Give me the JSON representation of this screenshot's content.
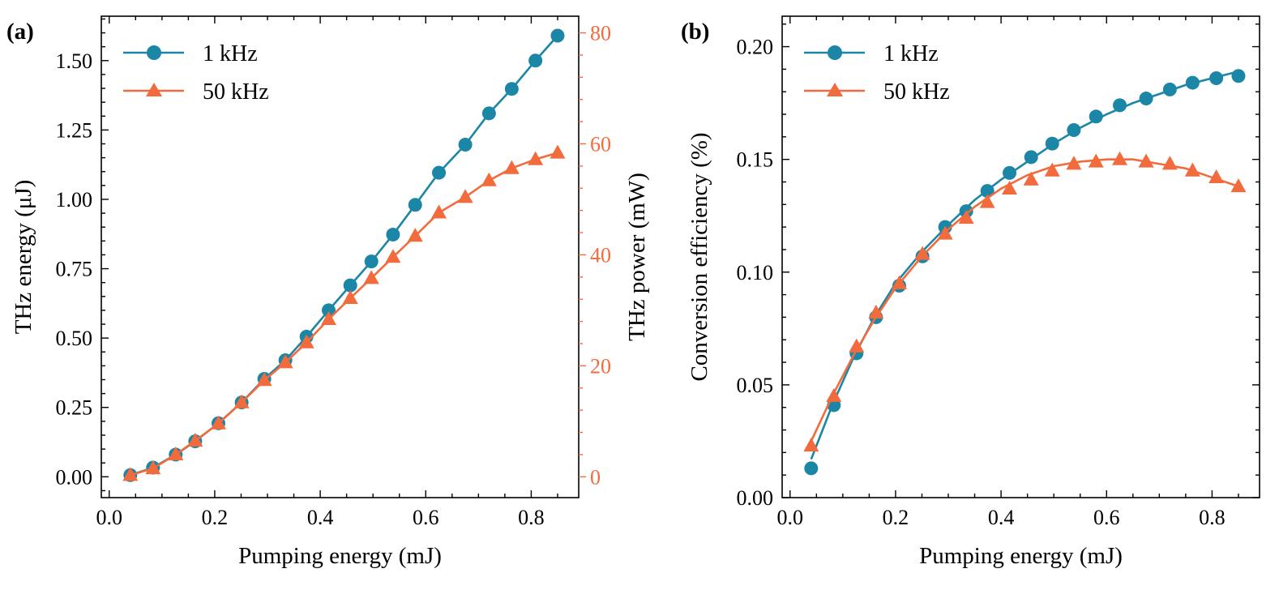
{
  "colors": {
    "series_1khz": "#1b86a6",
    "series_50khz": "#f26b3d",
    "axis": "#000000"
  },
  "chart_data": [
    {
      "type": "line",
      "panel_label": "(a)",
      "xlabel": "Pumping energy (mJ)",
      "ylabel": "THz energy (μJ)",
      "y2label": "THz power (mW)",
      "xlim": [
        -0.015,
        0.89
      ],
      "ylim": [
        -0.075,
        1.66
      ],
      "y2lim": [
        -3.75,
        83.0
      ],
      "xticks": [
        0.0,
        0.2,
        0.4,
        0.6,
        0.8
      ],
      "xtick_labels": [
        "0.0",
        "0.2",
        "0.4",
        "0.6",
        "0.8"
      ],
      "yticks": [
        0.0,
        0.25,
        0.5,
        0.75,
        1.0,
        1.25,
        1.5
      ],
      "ytick_labels": [
        "0.00",
        "0.25",
        "0.50",
        "0.75",
        "1.00",
        "1.25",
        "1.50"
      ],
      "y2ticks": [
        0,
        20,
        40,
        60,
        80
      ],
      "y2tick_labels": [
        "0",
        "20",
        "40",
        "60",
        "80"
      ],
      "legend_position": "top-left",
      "x": [
        0.04,
        0.083,
        0.126,
        0.163,
        0.207,
        0.251,
        0.294,
        0.334,
        0.374,
        0.416,
        0.457,
        0.497,
        0.538,
        0.58,
        0.625,
        0.675,
        0.72,
        0.763,
        0.808,
        0.85
      ],
      "series": [
        {
          "name": "1 kHz",
          "axis": "left",
          "marker": "circle",
          "values": [
            0.006,
            0.033,
            0.08,
            0.128,
            0.193,
            0.268,
            0.353,
            0.42,
            0.505,
            0.6,
            0.69,
            0.776,
            0.873,
            0.98,
            1.096,
            1.197,
            1.31,
            1.398,
            1.5,
            1.59
          ]
        },
        {
          "name": "50 kHz",
          "axis": "right",
          "marker": "triangle",
          "values": [
            0.3,
            1.5,
            4.0,
            6.5,
            9.6,
            13.4,
            17.4,
            20.6,
            24.2,
            28.4,
            32.2,
            35.8,
            39.6,
            43.4,
            47.6,
            50.4,
            53.4,
            55.6,
            57.2,
            58.4
          ]
        }
      ]
    },
    {
      "type": "line",
      "panel_label": "(b)",
      "xlabel": "Pumping energy (mJ)",
      "ylabel": "Conversion efficiency (%)",
      "xlim": [
        -0.015,
        0.89
      ],
      "ylim": [
        0.0,
        0.2135
      ],
      "xticks": [
        0.0,
        0.2,
        0.4,
        0.6,
        0.8
      ],
      "xtick_labels": [
        "0.0",
        "0.2",
        "0.4",
        "0.6",
        "0.8"
      ],
      "yticks": [
        0.0,
        0.05,
        0.1,
        0.15,
        0.2
      ],
      "ytick_labels": [
        "0.00",
        "0.05",
        "0.10",
        "0.15",
        "0.20"
      ],
      "legend_position": "top-left",
      "x": [
        0.04,
        0.083,
        0.126,
        0.163,
        0.207,
        0.251,
        0.294,
        0.334,
        0.374,
        0.416,
        0.457,
        0.497,
        0.538,
        0.58,
        0.625,
        0.675,
        0.72,
        0.763,
        0.808,
        0.85
      ],
      "series": [
        {
          "name": "1 kHz",
          "marker": "circle",
          "values": [
            0.013,
            0.041,
            0.064,
            0.08,
            0.094,
            0.107,
            0.12,
            0.127,
            0.136,
            0.144,
            0.151,
            0.157,
            0.163,
            0.169,
            0.174,
            0.177,
            0.181,
            0.184,
            0.186,
            0.187
          ],
          "fit": [
            [
              0.04,
              0.017
            ],
            [
              0.08,
              0.041
            ],
            [
              0.12,
              0.062
            ],
            [
              0.16,
              0.08
            ],
            [
              0.2,
              0.095
            ],
            [
              0.25,
              0.109
            ],
            [
              0.3,
              0.121
            ],
            [
              0.35,
              0.132
            ],
            [
              0.4,
              0.141
            ],
            [
              0.45,
              0.149
            ],
            [
              0.5,
              0.157
            ],
            [
              0.55,
              0.164
            ],
            [
              0.6,
              0.17
            ],
            [
              0.65,
              0.175
            ],
            [
              0.7,
              0.179
            ],
            [
              0.75,
              0.183
            ],
            [
              0.8,
              0.186
            ],
            [
              0.85,
              0.189
            ]
          ]
        },
        {
          "name": "50 kHz",
          "marker": "triangle",
          "values": [
            0.023,
            0.045,
            0.067,
            0.082,
            0.095,
            0.108,
            0.117,
            0.124,
            0.131,
            0.137,
            0.141,
            0.145,
            0.148,
            0.149,
            0.15,
            0.149,
            0.148,
            0.145,
            0.142,
            0.138
          ],
          "fit": [
            [
              0.04,
              0.025
            ],
            [
              0.08,
              0.045
            ],
            [
              0.12,
              0.063
            ],
            [
              0.16,
              0.079
            ],
            [
              0.2,
              0.093
            ],
            [
              0.25,
              0.107
            ],
            [
              0.3,
              0.119
            ],
            [
              0.35,
              0.129
            ],
            [
              0.4,
              0.137
            ],
            [
              0.45,
              0.143
            ],
            [
              0.5,
              0.147
            ],
            [
              0.55,
              0.149
            ],
            [
              0.6,
              0.15
            ],
            [
              0.65,
              0.15
            ],
            [
              0.7,
              0.148
            ],
            [
              0.75,
              0.146
            ],
            [
              0.8,
              0.142
            ],
            [
              0.85,
              0.138
            ]
          ]
        }
      ]
    }
  ]
}
